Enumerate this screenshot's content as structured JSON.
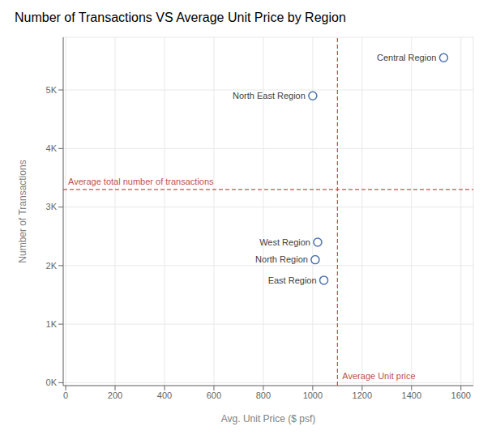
{
  "chart_data": {
    "type": "scatter",
    "title": "Number of Transactions VS Average Unit Price by Region",
    "xlabel": "Avg. Unit Price ($ psf)",
    "ylabel": "Number of Transactions",
    "x": [
      1530,
      1000,
      1020,
      1010,
      1045
    ],
    "values": [
      5550,
      4900,
      2400,
      2100,
      1750
    ],
    "labels": [
      "Central Region",
      "North East Region",
      "West Region",
      "North Region",
      "East Region"
    ],
    "color": "#4C72B0",
    "marker": "open_circle",
    "xlim": [
      -10,
      1650
    ],
    "ylim": [
      -50,
      5900
    ],
    "xticks": [
      0,
      200,
      400,
      600,
      800,
      1000,
      1200,
      1400,
      1600
    ],
    "yticks": [
      {
        "value": 0,
        "label": "0K"
      },
      {
        "value": 1000,
        "label": "1K"
      },
      {
        "value": 2000,
        "label": "2K"
      },
      {
        "value": 3000,
        "label": "3K"
      },
      {
        "value": 4000,
        "label": "4K"
      },
      {
        "value": 5000,
        "label": "5K"
      }
    ],
    "grid": true,
    "reference_lines": [
      {
        "axis": "y",
        "value": 3300,
        "label": "Average total number of transactions",
        "color": "#C0504D",
        "line_style": "dashed"
      },
      {
        "axis": "x",
        "value": 1100,
        "label": "Average Unit price",
        "color": "#C0504D",
        "line_style": "dashed"
      }
    ]
  }
}
